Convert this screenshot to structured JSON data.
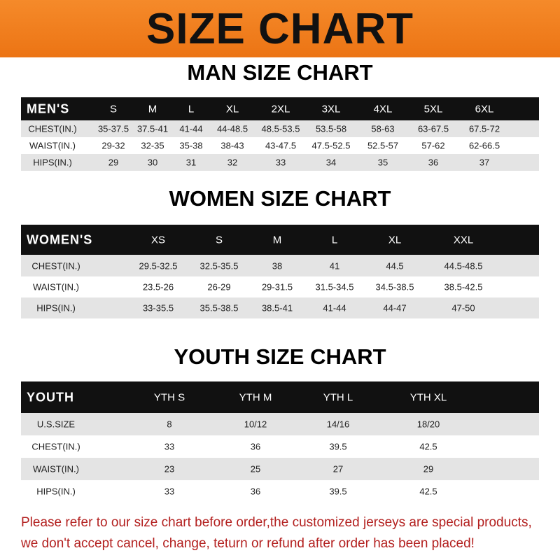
{
  "title": "SIZE CHART",
  "men": {
    "title": "MAN SIZE CHART",
    "header": [
      "MEN'S",
      "S",
      "M",
      "L",
      "XL",
      "2XL",
      "3XL",
      "4XL",
      "5XL",
      "6XL"
    ],
    "rows": [
      [
        "CHEST(IN.)",
        "35-37.5",
        "37.5-41",
        "41-44",
        "44-48.5",
        "48.5-53.5",
        "53.5-58",
        "58-63",
        "63-67.5",
        "67.5-72"
      ],
      [
        "WAIST(IN.)",
        "29-32",
        "32-35",
        "35-38",
        "38-43",
        "43-47.5",
        "47.5-52.5",
        "52.5-57",
        "57-62",
        "62-66.5"
      ],
      [
        "HIPS(IN.)",
        "29",
        "30",
        "31",
        "32",
        "33",
        "34",
        "35",
        "36",
        "37"
      ]
    ]
  },
  "women": {
    "title": "WOMEN SIZE CHART",
    "header": [
      "WOMEN'S",
      "XS",
      "S",
      "M",
      "L",
      "XL",
      "XXL"
    ],
    "rows": [
      [
        "CHEST(IN.)",
        "29.5-32.5",
        "32.5-35.5",
        "38",
        "41",
        "44.5",
        "44.5-48.5"
      ],
      [
        "WAIST(IN.)",
        "23.5-26",
        "26-29",
        "29-31.5",
        "31.5-34.5",
        "34.5-38.5",
        "38.5-42.5"
      ],
      [
        "HIPS(IN.)",
        "33-35.5",
        "35.5-38.5",
        "38.5-41",
        "41-44",
        "44-47",
        "47-50"
      ]
    ]
  },
  "youth": {
    "title": "YOUTH SIZE CHART",
    "header": [
      "YOUTH",
      "YTH S",
      "YTH M",
      "YTH L",
      "YTH XL"
    ],
    "rows": [
      [
        "U.S.SIZE",
        "8",
        "10/12",
        "14/16",
        "18/20"
      ],
      [
        "CHEST(IN.)",
        "33",
        "36",
        "39.5",
        "42.5"
      ],
      [
        "WAIST(IN.)",
        "23",
        "25",
        "27",
        "29"
      ],
      [
        "HIPS(IN.)",
        "33",
        "36",
        "39.5",
        "42.5"
      ]
    ]
  },
  "notice": [
    "Please refer to our size chart before order,the customized jerseys are special products,",
    "we don't accept cancel, change, teturn or refund after order has been placed!"
  ],
  "colors": {
    "banner": "#f07a1a",
    "header_row": "#111111",
    "notice": "#b3201f"
  }
}
